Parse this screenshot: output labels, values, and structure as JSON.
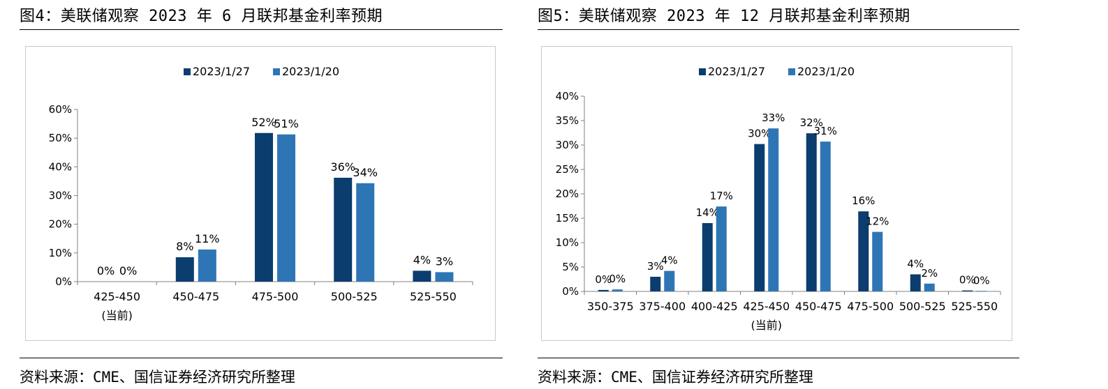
{
  "figures": [
    {
      "title": "图4：美联储观察 2023 年 6 月联邦基金利率预期",
      "source": "资料来源：CME、国信证券经济研究所整理"
    },
    {
      "title": "图5：美联储观察 2023 年 12 月联邦基金利率预期",
      "source": "资料来源：CME、国信证券经济研究所整理"
    }
  ],
  "chart_data": [
    {
      "type": "bar",
      "title": "",
      "xlabel": "",
      "ylabel": "",
      "categories": [
        "425-450",
        "450-475",
        "475-500",
        "500-525",
        "525-550"
      ],
      "category_sublabels": [
        "(当前)",
        "",
        "",
        "",
        ""
      ],
      "series": [
        {
          "name": "2023/1/27",
          "color": "#0b3d6e",
          "values": [
            0,
            8.5,
            51.8,
            36.2,
            3.8
          ]
        },
        {
          "name": "2023/1/20",
          "color": "#2e75b6",
          "values": [
            0,
            11.2,
            51.3,
            34.3,
            3.3
          ]
        }
      ],
      "data_labels": [
        [
          "0%",
          "8%",
          "52%",
          "36%",
          "4%"
        ],
        [
          "0%",
          "11%",
          "51%",
          "34%",
          "3%"
        ]
      ],
      "ylim": [
        0,
        60
      ],
      "yticks": [
        0,
        10,
        20,
        30,
        40,
        50,
        60
      ],
      "ytick_labels": [
        "0%",
        "10%",
        "20%",
        "30%",
        "40%",
        "50%",
        "60%"
      ],
      "legend": "top-center",
      "grid": false
    },
    {
      "type": "bar",
      "title": "",
      "xlabel": "",
      "ylabel": "",
      "categories": [
        "350-375",
        "375-400",
        "400-425",
        "425-450",
        "450-475",
        "475-500",
        "500-525",
        "525-550"
      ],
      "category_sublabels": [
        "",
        "",
        "",
        "(当前)",
        "",
        "",
        "",
        ""
      ],
      "series": [
        {
          "name": "2023/1/27",
          "color": "#0b3d6e",
          "values": [
            0.3,
            3.0,
            14.0,
            30.2,
            32.4,
            16.4,
            3.5,
            0.2
          ]
        },
        {
          "name": "2023/1/20",
          "color": "#2e75b6",
          "values": [
            0.4,
            4.2,
            17.4,
            33.4,
            30.7,
            12.2,
            1.6,
            0.1
          ]
        }
      ],
      "data_labels": [
        [
          "0%",
          "3%",
          "14%",
          "30%",
          "32%",
          "16%",
          "4%",
          "0%"
        ],
        [
          "0%",
          "4%",
          "17%",
          "33%",
          "31%",
          "12%",
          "2%",
          "0%"
        ]
      ],
      "ylim": [
        0,
        40
      ],
      "yticks": [
        0,
        5,
        10,
        15,
        20,
        25,
        30,
        35,
        40
      ],
      "ytick_labels": [
        "0%",
        "5%",
        "10%",
        "15%",
        "20%",
        "25%",
        "30%",
        "35%",
        "40%"
      ],
      "legend": "top-center",
      "grid": false
    }
  ]
}
